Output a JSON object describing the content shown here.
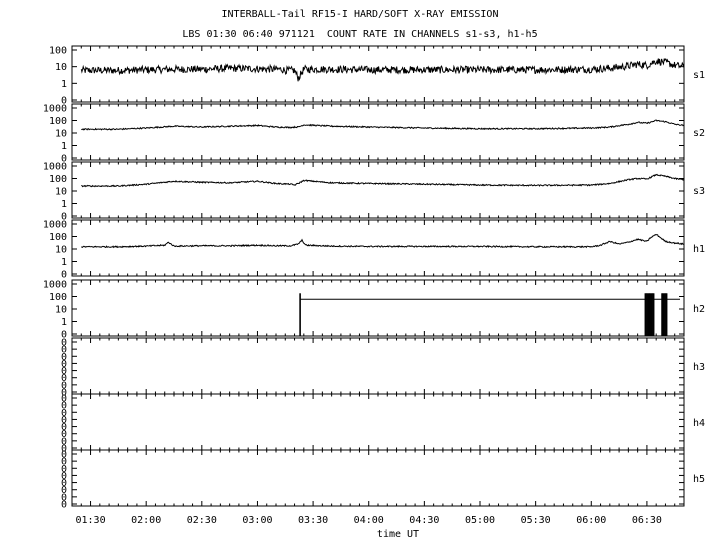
{
  "title": "INTERBALL-Tail RF15-I HARD/SOFT X-RAY EMISSION",
  "subtitle": "LBS 01:30 06:40 971121  COUNT RATE IN CHANNELS s1-s3, h1-h5",
  "chart_data": {
    "type": "line",
    "xlabel": "time UT",
    "x_range": [
      "01:20",
      "06:50"
    ],
    "x_ticks": [
      "01:30",
      "02:00",
      "02:30",
      "03:00",
      "03:30",
      "04:00",
      "04:30",
      "05:00",
      "05:30",
      "06:00",
      "06:30"
    ],
    "y_scale": "log",
    "grid": false,
    "panels": [
      {
        "name": "s1",
        "y_tick_labels": [
          "100",
          "10",
          "1",
          "0"
        ],
        "series": {
          "x": [
            "01:25",
            "01:45",
            "02:00",
            "02:15",
            "02:30",
            "02:45",
            "03:00",
            "03:10",
            "03:13",
            "03:15",
            "03:18",
            "03:20",
            "03:22",
            "03:25",
            "03:40",
            "04:00",
            "04:30",
            "05:00",
            "05:30",
            "06:00",
            "06:10",
            "06:20",
            "06:25",
            "06:30",
            "06:35",
            "06:40",
            "06:45",
            "06:50"
          ],
          "y": [
            6,
            6,
            6.5,
            7,
            7,
            8,
            7.5,
            7,
            7,
            6,
            6,
            6,
            2,
            7,
            7,
            6.5,
            6.5,
            6.5,
            6.5,
            7,
            8,
            11,
            14,
            12,
            22,
            18,
            12,
            10
          ]
        }
      },
      {
        "name": "s2",
        "y_tick_labels": [
          "1000",
          "100",
          "10",
          "1",
          "0"
        ],
        "series": {
          "x": [
            "01:25",
            "01:45",
            "02:00",
            "02:15",
            "02:30",
            "02:45",
            "03:00",
            "03:10",
            "03:18",
            "03:20",
            "03:22",
            "03:25",
            "03:40",
            "04:00",
            "04:30",
            "05:00",
            "05:30",
            "06:00",
            "06:10",
            "06:20",
            "06:25",
            "06:30",
            "06:35",
            "06:40",
            "06:45",
            "06:50"
          ],
          "y": [
            20,
            20,
            25,
            35,
            30,
            35,
            40,
            30,
            28,
            30,
            30,
            45,
            35,
            30,
            25,
            22,
            22,
            25,
            30,
            50,
            70,
            60,
            100,
            80,
            50,
            40
          ]
        }
      },
      {
        "name": "s3",
        "y_tick_labels": [
          "1000",
          "100",
          "10",
          "1",
          "0"
        ],
        "series": {
          "x": [
            "01:25",
            "01:45",
            "02:00",
            "02:15",
            "02:30",
            "02:45",
            "03:00",
            "03:10",
            "03:18",
            "03:20",
            "03:22",
            "03:25",
            "03:40",
            "04:00",
            "04:30",
            "05:00",
            "05:30",
            "06:00",
            "06:10",
            "06:20",
            "06:25",
            "06:30",
            "06:35",
            "06:40",
            "06:45",
            "06:50"
          ],
          "y": [
            25,
            25,
            35,
            60,
            50,
            45,
            60,
            40,
            35,
            30,
            40,
            70,
            45,
            40,
            35,
            30,
            28,
            30,
            40,
            80,
            100,
            90,
            200,
            150,
            100,
            80
          ]
        }
      },
      {
        "name": "h1",
        "y_tick_labels": [
          "1000",
          "100",
          "10",
          "1",
          "0"
        ],
        "series": {
          "x": [
            "01:25",
            "01:45",
            "02:00",
            "02:10",
            "02:12",
            "02:15",
            "02:30",
            "02:45",
            "03:00",
            "03:10",
            "03:18",
            "03:22",
            "03:24",
            "03:26",
            "03:40",
            "04:00",
            "04:30",
            "05:00",
            "05:30",
            "06:00",
            "06:05",
            "06:10",
            "06:15",
            "06:20",
            "06:25",
            "06:30",
            "06:32",
            "06:35",
            "06:40",
            "06:45",
            "06:50"
          ],
          "y": [
            15,
            15,
            17,
            20,
            35,
            17,
            18,
            18,
            20,
            18,
            18,
            25,
            50,
            20,
            17,
            16,
            16,
            16,
            15,
            15,
            20,
            40,
            25,
            35,
            60,
            40,
            80,
            150,
            40,
            30,
            25
          ]
        }
      },
      {
        "name": "h2",
        "y_tick_labels": [
          "1000",
          "100",
          "10",
          "1",
          "0"
        ],
        "series": {
          "x": [
            "03:23",
            "03:23",
            "06:30",
            "06:30",
            "06:50"
          ],
          "y": [
            0,
            60,
            60,
            0,
            60
          ]
        }
      },
      {
        "name": "h3",
        "y_tick_labels": [
          "0",
          "0",
          "0",
          "0",
          "0",
          "0",
          "0",
          "0"
        ],
        "series": {
          "x": [],
          "y": []
        }
      },
      {
        "name": "h4",
        "y_tick_labels": [
          "0",
          "0",
          "0",
          "0",
          "0",
          "0",
          "0",
          "0"
        ],
        "series": {
          "x": [],
          "y": []
        }
      },
      {
        "name": "h5",
        "y_tick_labels": [
          "0",
          "0",
          "0",
          "0",
          "0",
          "0",
          "0",
          "0"
        ],
        "series": {
          "x": [],
          "y": []
        }
      }
    ]
  }
}
